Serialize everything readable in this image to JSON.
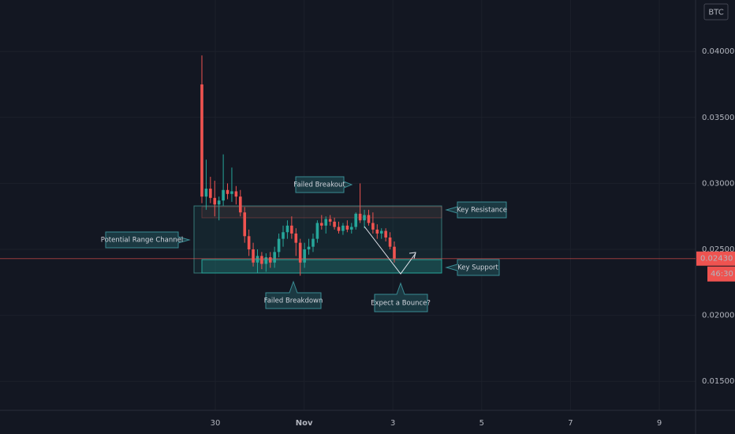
{
  "chart_data": {
    "type": "candlestick",
    "currency": "BTC",
    "x_labels": [
      "30",
      "Nov",
      "3",
      "5",
      "7",
      "9"
    ],
    "ylim": [
      0.0128,
      0.0439
    ],
    "yticks": [
      {
        "value": 0.04,
        "label": "0.04000"
      },
      {
        "value": 0.035,
        "label": "0.03500"
      },
      {
        "value": 0.03,
        "label": "0.03000"
      },
      {
        "value": 0.025,
        "label": "0.02500"
      },
      {
        "value": 0.02,
        "label": "0.02000"
      },
      {
        "value": 0.015,
        "label": "0.01500"
      }
    ],
    "last_price": {
      "value": 0.0243,
      "label": "0.02430"
    },
    "countdown": "46:30",
    "up_color": "#26a69a",
    "down_color": "#ef5350",
    "open": [
      0.0375,
      0.029,
      0.0296,
      0.0289,
      0.0284,
      0.0287,
      0.0295,
      0.0292,
      0.0294,
      0.029,
      0.0278,
      0.026,
      0.025,
      0.024,
      0.0245,
      0.0239,
      0.0244,
      0.024,
      0.0248,
      0.0258,
      0.0263,
      0.0268,
      0.0262,
      0.0255,
      0.024,
      0.025,
      0.0252,
      0.0258,
      0.027,
      0.0268,
      0.0273,
      0.0271,
      0.0267,
      0.0264,
      0.0268,
      0.0265,
      0.0267,
      0.0277,
      0.0272,
      0.0276,
      0.027,
      0.0265,
      0.0262,
      0.0264,
      0.0259,
      0.0252
    ],
    "high": [
      0.0397,
      0.0318,
      0.0305,
      0.0302,
      0.029,
      0.0322,
      0.03,
      0.0312,
      0.0298,
      0.0295,
      0.0282,
      0.0265,
      0.0255,
      0.025,
      0.0248,
      0.0247,
      0.0248,
      0.0252,
      0.0262,
      0.0268,
      0.0272,
      0.0275,
      0.0266,
      0.0258,
      0.0255,
      0.0258,
      0.0262,
      0.0272,
      0.0276,
      0.0275,
      0.0276,
      0.0274,
      0.0271,
      0.027,
      0.0272,
      0.027,
      0.0278,
      0.03,
      0.028,
      0.028,
      0.0278,
      0.0269,
      0.0266,
      0.0266,
      0.0263,
      0.0256
    ],
    "low": [
      0.0285,
      0.028,
      0.0285,
      0.0275,
      0.0272,
      0.0283,
      0.0288,
      0.0286,
      0.0284,
      0.0275,
      0.0255,
      0.0245,
      0.0237,
      0.0232,
      0.0235,
      0.0233,
      0.0236,
      0.0236,
      0.0244,
      0.0252,
      0.0258,
      0.0258,
      0.0245,
      0.023,
      0.0236,
      0.0246,
      0.0248,
      0.0255,
      0.0265,
      0.0262,
      0.0268,
      0.0265,
      0.0262,
      0.0261,
      0.0263,
      0.0262,
      0.0265,
      0.027,
      0.0266,
      0.0268,
      0.0262,
      0.0258,
      0.0258,
      0.0256,
      0.025,
      0.024
    ],
    "close": [
      0.029,
      0.0296,
      0.0289,
      0.0284,
      0.0287,
      0.0295,
      0.0292,
      0.0294,
      0.029,
      0.0278,
      0.026,
      0.025,
      0.024,
      0.0245,
      0.0239,
      0.0244,
      0.024,
      0.0248,
      0.0258,
      0.0263,
      0.0268,
      0.0262,
      0.0255,
      0.024,
      0.025,
      0.0252,
      0.0258,
      0.027,
      0.0268,
      0.0273,
      0.0271,
      0.0267,
      0.0264,
      0.0268,
      0.0265,
      0.0267,
      0.0277,
      0.0272,
      0.0276,
      0.027,
      0.0265,
      0.0262,
      0.0264,
      0.0259,
      0.0252,
      0.0243
    ],
    "annotations": [
      "Failed Breakout",
      "Key Resistance",
      "Potential Range Channel",
      "Key Support",
      "Failed Breakdown",
      "Expect a Bounce?"
    ]
  }
}
